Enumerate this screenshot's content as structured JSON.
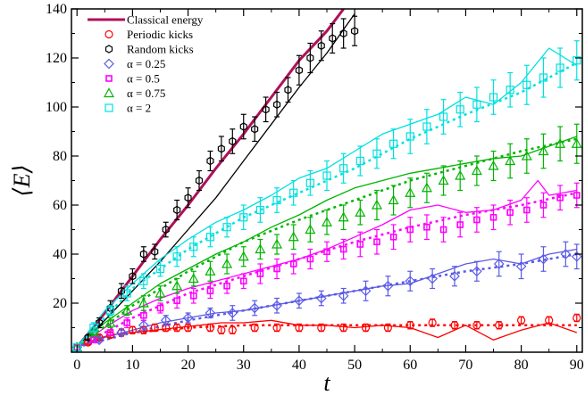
{
  "chart_data": {
    "type": "scatter",
    "xlabel": "t",
    "ylabel": "⟨E⟩",
    "xlim": [
      -1,
      91
    ],
    "ylim": [
      0,
      140
    ],
    "x_ticks": [
      0,
      10,
      20,
      30,
      40,
      50,
      60,
      70,
      80,
      90
    ],
    "y_ticks": [
      20,
      40,
      60,
      80,
      100,
      120,
      140
    ],
    "legend_position": "top-left",
    "grid": false,
    "lines": [
      {
        "name": "Classical energy",
        "color": "#b0105a",
        "width": 3,
        "x": [
          0,
          5,
          10,
          15,
          20,
          25,
          30,
          35,
          40,
          45,
          48
        ],
        "y": [
          2,
          16,
          31,
          46,
          60,
          75,
          89,
          104,
          119,
          131,
          140
        ]
      },
      {
        "name": "",
        "color": "#000000",
        "width": 1.3,
        "x": [
          0,
          5,
          10,
          15,
          20,
          25,
          30,
          35,
          40,
          45,
          50
        ],
        "y": [
          2,
          13,
          25,
          37,
          50,
          63,
          78,
          93,
          108,
          122,
          138
        ]
      },
      {
        "name": "",
        "color": "#ff0000",
        "width": 1.3,
        "x": [
          0,
          3,
          6,
          10,
          14,
          18,
          22,
          26,
          30,
          35,
          40,
          45,
          50,
          55,
          60,
          65,
          70,
          75,
          80,
          85,
          90
        ],
        "y": [
          2,
          5,
          7,
          8,
          9,
          10,
          11,
          12,
          12,
          13,
          11,
          11,
          10,
          11,
          10,
          6,
          11,
          5,
          9,
          12,
          8
        ]
      },
      {
        "name": "",
        "color": "#ff0000",
        "width": 2.5,
        "dash": "3,4",
        "x": [
          0,
          3,
          6,
          10,
          15,
          20,
          25,
          30,
          40,
          50,
          60,
          70,
          80,
          90
        ],
        "y": [
          2,
          5,
          7,
          8,
          9,
          10,
          10.5,
          11,
          11,
          11,
          11,
          11,
          11,
          11
        ]
      },
      {
        "name": "",
        "color": "#5a5ae6",
        "width": 1.3,
        "x": [
          0,
          5,
          10,
          15,
          20,
          25,
          30,
          35,
          40,
          45,
          50,
          55,
          60,
          65,
          70,
          75,
          80,
          85,
          90
        ],
        "y": [
          2,
          6,
          9,
          12,
          14,
          16,
          17,
          19,
          21,
          23,
          25,
          27,
          28,
          32,
          36,
          38,
          36,
          40,
          42
        ]
      },
      {
        "name": "",
        "color": "#5a5ae6",
        "width": 2.5,
        "dash": "3,4",
        "x": [
          0,
          10,
          20,
          30,
          40,
          50,
          60,
          70,
          80,
          90
        ],
        "y": [
          2,
          8,
          13,
          17,
          21,
          25,
          29,
          33,
          36,
          40
        ]
      },
      {
        "name": "",
        "color": "#ff00ff",
        "width": 1.3,
        "x": [
          0,
          5,
          10,
          15,
          20,
          25,
          30,
          35,
          40,
          45,
          50,
          55,
          60,
          65,
          70,
          75,
          80,
          83,
          85,
          90
        ],
        "y": [
          2,
          10,
          17,
          22,
          26,
          29,
          32,
          35,
          38,
          42,
          47,
          52,
          58,
          60,
          57,
          58,
          62,
          70,
          64,
          66
        ]
      },
      {
        "name": "",
        "color": "#ff00ff",
        "width": 2.5,
        "dash": "3,4",
        "x": [
          0,
          10,
          20,
          30,
          40,
          50,
          60,
          70,
          80,
          90
        ],
        "y": [
          2,
          14,
          24,
          31,
          38,
          45,
          51,
          56,
          60,
          65
        ]
      },
      {
        "name": "",
        "color": "#00b400",
        "width": 1.3,
        "x": [
          0,
          5,
          10,
          15,
          20,
          25,
          30,
          35,
          40,
          45,
          50,
          55,
          60,
          65,
          70,
          75,
          80,
          85,
          90
        ],
        "y": [
          2,
          12,
          20,
          28,
          34,
          40,
          45,
          51,
          56,
          62,
          67,
          70,
          73,
          75,
          77,
          79,
          80,
          84,
          88
        ]
      },
      {
        "name": "",
        "color": "#00b400",
        "width": 2.5,
        "dash": "3,4",
        "x": [
          0,
          10,
          20,
          30,
          40,
          50,
          60,
          70,
          80,
          90
        ],
        "y": [
          2,
          19,
          33,
          45,
          54,
          62,
          70,
          76,
          82,
          87
        ]
      },
      {
        "name": "",
        "color": "#00e0e0",
        "width": 1.3,
        "x": [
          0,
          5,
          10,
          15,
          20,
          25,
          30,
          35,
          40,
          45,
          50,
          55,
          60,
          65,
          70,
          75,
          80,
          85,
          90
        ],
        "y": [
          2,
          17,
          28,
          38,
          46,
          53,
          58,
          64,
          71,
          75,
          82,
          89,
          93,
          97,
          104,
          101,
          110,
          124,
          117
        ]
      },
      {
        "name": "",
        "color": "#00e0e0",
        "width": 2.5,
        "dash": "3,4",
        "x": [
          0,
          10,
          20,
          30,
          40,
          50,
          60,
          70,
          80,
          90
        ],
        "y": [
          2,
          26,
          42,
          55,
          65,
          75,
          87,
          97,
          106,
          118
        ]
      }
    ],
    "series": [
      {
        "name": "Periodic kicks",
        "color": "#ff0000",
        "marker": "circle",
        "x": [
          0,
          2,
          4,
          6,
          8,
          10,
          12,
          14,
          16,
          18,
          20,
          24,
          26,
          28,
          32,
          36,
          40,
          44,
          48,
          52,
          56,
          60,
          64,
          68,
          72,
          76,
          80,
          85,
          90
        ],
        "y": [
          2,
          4,
          6,
          7,
          8,
          9,
          9,
          10,
          10,
          10,
          10,
          10,
          9,
          9,
          10,
          10,
          10,
          10,
          10,
          10,
          10,
          11,
          12,
          11,
          11,
          11,
          13,
          13,
          14
        ],
        "err": [
          0,
          1,
          1,
          1,
          1.5,
          1.5,
          1.5,
          1.5,
          1.5,
          1.5,
          1.5,
          1.5,
          1.5,
          1.5,
          1.5,
          1.5,
          1.5,
          1.5,
          1.5,
          1.5,
          1.5,
          1.5,
          1.5,
          1.5,
          1.5,
          1.5,
          1.5,
          1.5,
          1.5
        ]
      },
      {
        "name": "Random kicks",
        "color": "#000000",
        "marker": "hexagon",
        "x": [
          0,
          2,
          4,
          6,
          8,
          10,
          12,
          14,
          16,
          18,
          20,
          22,
          24,
          26,
          28,
          30,
          32,
          34,
          36,
          38,
          40,
          42,
          44,
          46,
          48,
          50
        ],
        "y": [
          2,
          6,
          12,
          18,
          25,
          31,
          40,
          41,
          50,
          58,
          63,
          70,
          78,
          83,
          86,
          92,
          91,
          99,
          101,
          107,
          115,
          120,
          125,
          128,
          130,
          131
        ],
        "err": [
          0,
          1,
          2,
          3,
          3,
          3,
          3,
          3,
          3,
          4,
          4,
          4,
          4,
          5,
          5,
          5,
          5,
          5,
          5,
          5,
          6,
          6,
          6,
          6,
          6,
          6
        ]
      },
      {
        "name": "α = 0.25",
        "color": "#5a5ae6",
        "marker": "diamond",
        "x": [
          0,
          4,
          8,
          12,
          16,
          20,
          24,
          28,
          32,
          36,
          40,
          44,
          48,
          52,
          56,
          60,
          64,
          68,
          72,
          76,
          80,
          84,
          88,
          90
        ],
        "y": [
          2,
          5,
          8,
          11,
          13,
          14,
          16,
          16,
          18,
          19,
          21,
          22,
          23,
          25,
          27,
          29,
          30,
          31,
          33,
          36,
          35,
          38,
          40,
          39
        ],
        "err": [
          0,
          1,
          1,
          2,
          2,
          2,
          2,
          3,
          3,
          3,
          3,
          3,
          3,
          4,
          4,
          4,
          4,
          4,
          4,
          5,
          5,
          5,
          5,
          5
        ]
      },
      {
        "name": "α = 0.5",
        "color": "#ff00ff",
        "marker": "square",
        "x": [
          0,
          3,
          6,
          9,
          12,
          15,
          18,
          21,
          24,
          27,
          30,
          33,
          36,
          39,
          42,
          45,
          48,
          51,
          54,
          57,
          60,
          63,
          66,
          69,
          72,
          75,
          78,
          81,
          84,
          87,
          90
        ],
        "y": [
          2,
          5,
          8,
          12,
          15,
          18,
          21,
          23,
          25,
          27,
          29,
          32,
          34,
          36,
          38,
          41,
          42,
          44,
          45,
          47,
          50,
          51,
          50,
          52,
          54,
          55,
          57,
          58,
          60,
          63,
          64
        ],
        "err": [
          0,
          1,
          1,
          2,
          2,
          2,
          3,
          3,
          3,
          3,
          3,
          4,
          4,
          4,
          4,
          4,
          4,
          5,
          5,
          5,
          5,
          5,
          5,
          5,
          5,
          5,
          5,
          5,
          5,
          5,
          5
        ]
      },
      {
        "name": "α = 0.75",
        "color": "#00b400",
        "marker": "triangle",
        "x": [
          0,
          3,
          6,
          9,
          12,
          15,
          18,
          21,
          24,
          27,
          30,
          33,
          36,
          39,
          42,
          45,
          48,
          51,
          54,
          57,
          60,
          63,
          66,
          69,
          72,
          75,
          78,
          81,
          84,
          87,
          90
        ],
        "y": [
          2,
          8,
          12,
          17,
          20,
          24,
          27,
          30,
          33,
          36,
          39,
          42,
          44,
          47,
          50,
          53,
          55,
          57,
          60,
          62,
          65,
          67,
          70,
          72,
          74,
          76,
          78,
          80,
          82,
          85,
          85
        ],
        "err": [
          0,
          1,
          2,
          2,
          3,
          3,
          3,
          3,
          4,
          4,
          4,
          4,
          4,
          5,
          5,
          5,
          5,
          5,
          6,
          6,
          6,
          6,
          6,
          6,
          6,
          6,
          7,
          7,
          7,
          7,
          8
        ]
      },
      {
        "name": "α = 2",
        "color": "#00e0e0",
        "marker": "square-open",
        "x": [
          0,
          3,
          6,
          9,
          12,
          15,
          18,
          21,
          24,
          27,
          30,
          33,
          36,
          39,
          42,
          45,
          48,
          51,
          54,
          57,
          60,
          63,
          66,
          69,
          72,
          75,
          78,
          81,
          84,
          87,
          90
        ],
        "y": [
          2,
          10,
          17,
          24,
          29,
          34,
          39,
          43,
          47,
          51,
          55,
          58,
          62,
          65,
          69,
          72,
          75,
          78,
          81,
          85,
          88,
          92,
          96,
          99,
          101,
          104,
          107,
          109,
          112,
          116,
          119
        ],
        "err": [
          0,
          2,
          2,
          3,
          3,
          3,
          4,
          4,
          4,
          4,
          5,
          5,
          5,
          5,
          5,
          6,
          6,
          6,
          6,
          6,
          7,
          7,
          7,
          7,
          7,
          7,
          7,
          8,
          8,
          8,
          8
        ]
      }
    ],
    "legend": [
      {
        "label": "Classical energy",
        "kind": "line",
        "color": "#b0105a"
      },
      {
        "label": "Periodic kicks",
        "kind": "circle",
        "color": "#ff0000"
      },
      {
        "label": "Random kicks",
        "kind": "hexagon",
        "color": "#000000"
      },
      {
        "label": "α = 0.25",
        "kind": "diamond",
        "color": "#5a5ae6"
      },
      {
        "label": "α = 0.5",
        "kind": "square",
        "color": "#ff00ff"
      },
      {
        "label": "α = 0.75",
        "kind": "triangle",
        "color": "#00b400"
      },
      {
        "label": "α = 2",
        "kind": "square-open",
        "color": "#00e0e0"
      }
    ]
  }
}
